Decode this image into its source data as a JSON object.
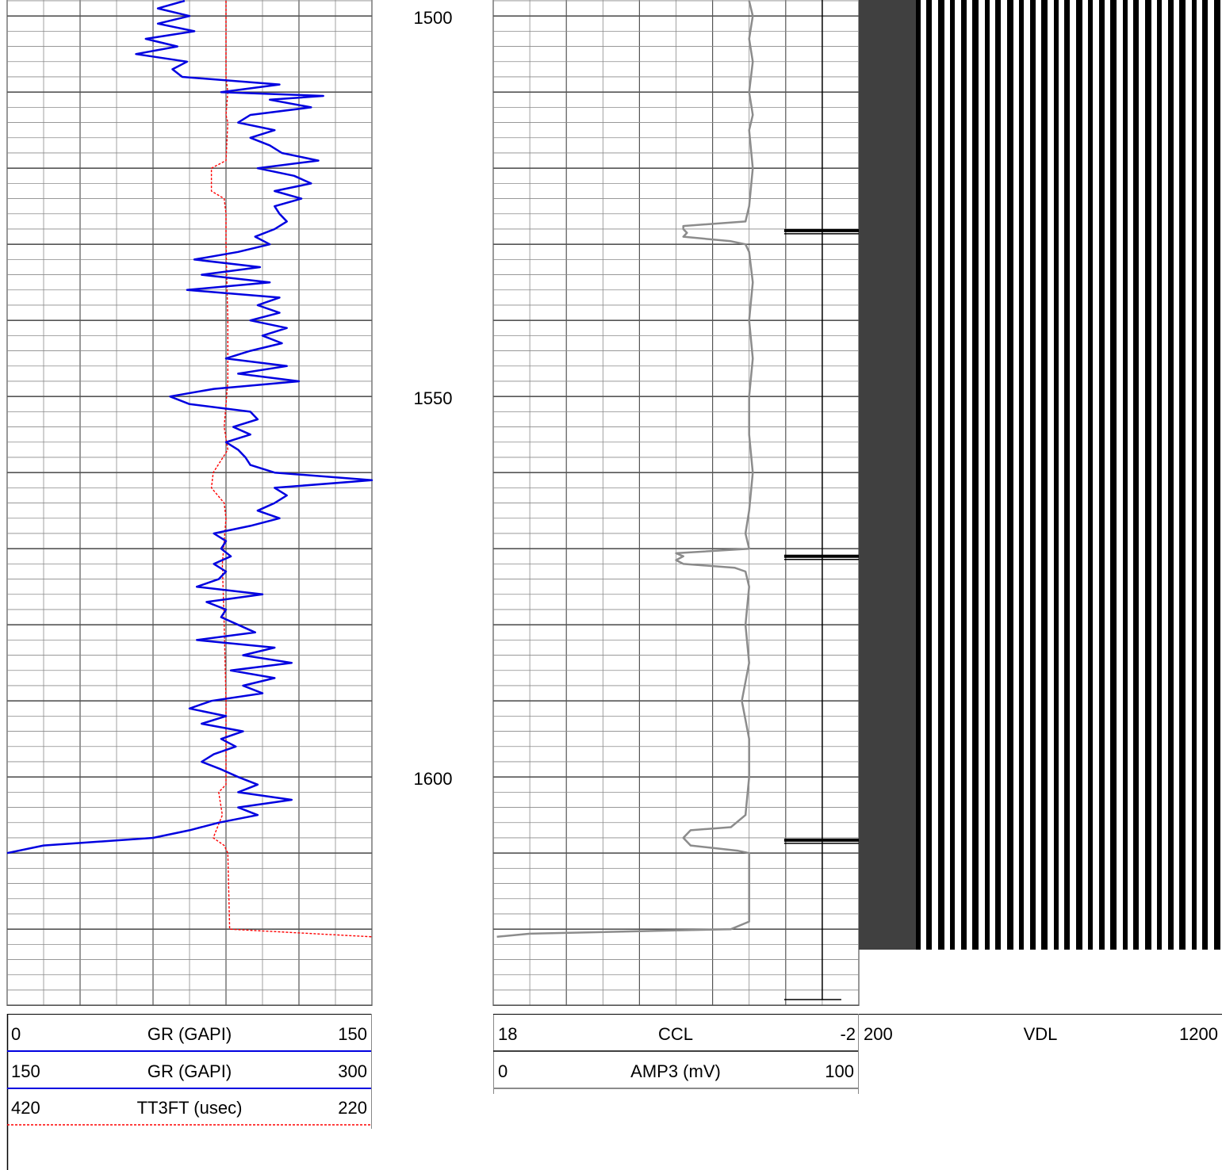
{
  "depth_track": {
    "labels": [
      "1500",
      "1550",
      "1600"
    ]
  },
  "headers": {
    "gr1": {
      "min": "0",
      "label": "GR (GAPI)",
      "max": "150"
    },
    "gr2": {
      "min": "150",
      "label": "GR (GAPI)",
      "max": "300"
    },
    "tt3": {
      "min": "420",
      "label": "TT3FT (usec)",
      "max": "220"
    },
    "ccl": {
      "min": "18",
      "label": "CCL",
      "max": "-2"
    },
    "amp3": {
      "min": "0",
      "label": "AMP3 (mV)",
      "max": "100"
    },
    "vdl": {
      "min": "200",
      "label": "VDL",
      "max": "1200"
    }
  },
  "colors": {
    "gr": "#0000e0",
    "tt3": "#ff0000",
    "amp3": "#8c8c8c",
    "ccl": "#000000",
    "grid_minor": "#8a8a8a",
    "grid_major": "#555555",
    "vdl_bg": "#404040"
  },
  "chart_data": {
    "type": "line",
    "y_axis": "depth",
    "depth_range": [
      1498,
      1630
    ],
    "series": [
      {
        "name": "GR (GAPI)",
        "scale": [
          0,
          150
        ],
        "points": [
          [
            1498,
            73
          ],
          [
            1499,
            62
          ],
          [
            1500,
            75
          ],
          [
            1501,
            62
          ],
          [
            1502,
            77
          ],
          [
            1503,
            57
          ],
          [
            1504,
            70
          ],
          [
            1505,
            53
          ],
          [
            1506,
            74
          ],
          [
            1507,
            68
          ],
          [
            1508,
            72
          ],
          [
            1509,
            112
          ],
          [
            1510,
            88
          ],
          [
            1510.5,
            130
          ],
          [
            1511,
            108
          ],
          [
            1512,
            125
          ],
          [
            1513,
            100
          ],
          [
            1514,
            95
          ],
          [
            1515,
            110
          ],
          [
            1516,
            100
          ],
          [
            1517,
            108
          ],
          [
            1518,
            113
          ],
          [
            1519,
            128
          ],
          [
            1520,
            103
          ],
          [
            1521,
            118
          ],
          [
            1522,
            125
          ],
          [
            1523,
            110
          ],
          [
            1524,
            121
          ],
          [
            1525,
            110
          ],
          [
            1526,
            112
          ],
          [
            1527,
            115
          ],
          [
            1528,
            110
          ],
          [
            1529,
            102
          ],
          [
            1530,
            108
          ],
          [
            1531,
            95
          ],
          [
            1532,
            77
          ],
          [
            1533,
            104
          ],
          [
            1534,
            80
          ],
          [
            1535,
            108
          ],
          [
            1536,
            74
          ],
          [
            1537,
            112
          ],
          [
            1538,
            103
          ],
          [
            1539,
            112
          ],
          [
            1540,
            100
          ],
          [
            1541,
            115
          ],
          [
            1542,
            105
          ],
          [
            1543,
            113
          ],
          [
            1544,
            100
          ],
          [
            1545,
            90
          ],
          [
            1546,
            115
          ],
          [
            1547,
            95
          ],
          [
            1548,
            120
          ],
          [
            1549,
            85
          ],
          [
            1550,
            67
          ],
          [
            1551,
            75
          ],
          [
            1552,
            100
          ],
          [
            1553,
            103
          ],
          [
            1554,
            93
          ],
          [
            1555,
            100
          ],
          [
            1556,
            90
          ],
          [
            1557,
            95
          ],
          [
            1558,
            98
          ],
          [
            1559,
            100
          ],
          [
            1560,
            110
          ],
          [
            1561,
            150
          ],
          [
            1562,
            110
          ],
          [
            1563,
            115
          ],
          [
            1564,
            110
          ],
          [
            1565,
            103
          ],
          [
            1566,
            112
          ],
          [
            1567,
            100
          ],
          [
            1568,
            85
          ],
          [
            1569,
            90
          ],
          [
            1570,
            88
          ],
          [
            1571,
            92
          ],
          [
            1572,
            85
          ],
          [
            1573,
            90
          ],
          [
            1574,
            87
          ],
          [
            1575,
            78
          ],
          [
            1576,
            105
          ],
          [
            1577,
            82
          ],
          [
            1578,
            90
          ],
          [
            1579,
            88
          ],
          [
            1580,
            95
          ],
          [
            1581,
            102
          ],
          [
            1582,
            78
          ],
          [
            1583,
            110
          ],
          [
            1584,
            97
          ],
          [
            1585,
            117
          ],
          [
            1586,
            92
          ],
          [
            1587,
            110
          ],
          [
            1588,
            97
          ],
          [
            1589,
            105
          ],
          [
            1590,
            84
          ],
          [
            1591,
            75
          ],
          [
            1592,
            90
          ],
          [
            1593,
            80
          ],
          [
            1594,
            97
          ],
          [
            1595,
            88
          ],
          [
            1596,
            94
          ],
          [
            1597,
            85
          ],
          [
            1598,
            80
          ],
          [
            1599,
            88
          ],
          [
            1600,
            95
          ],
          [
            1601,
            103
          ],
          [
            1602,
            95
          ],
          [
            1603,
            117
          ],
          [
            1604,
            95
          ],
          [
            1605,
            103
          ],
          [
            1606,
            87
          ],
          [
            1607,
            75
          ],
          [
            1608,
            60
          ],
          [
            1609,
            15
          ],
          [
            1610,
            0
          ]
        ]
      },
      {
        "name": "TT3FT (usec)",
        "scale": [
          420,
          220
        ],
        "points": [
          [
            1498,
            300
          ],
          [
            1508,
            300
          ],
          [
            1510,
            299
          ],
          [
            1513,
            300
          ],
          [
            1514,
            299
          ],
          [
            1519,
            300
          ],
          [
            1520,
            308
          ],
          [
            1523,
            308
          ],
          [
            1524,
            301
          ],
          [
            1526,
            300
          ],
          [
            1528,
            300
          ],
          [
            1530,
            300
          ],
          [
            1540,
            299
          ],
          [
            1548,
            299
          ],
          [
            1554,
            301
          ],
          [
            1557,
            299
          ],
          [
            1560,
            307
          ],
          [
            1562,
            308
          ],
          [
            1564,
            301
          ],
          [
            1566,
            300
          ],
          [
            1572,
            302
          ],
          [
            1580,
            301
          ],
          [
            1590,
            300
          ],
          [
            1600,
            300
          ],
          [
            1601,
            300
          ],
          [
            1602,
            304
          ],
          [
            1605,
            302
          ],
          [
            1608,
            307
          ],
          [
            1609,
            301
          ],
          [
            1610,
            299
          ],
          [
            1620,
            298
          ],
          [
            1621,
            220
          ]
        ]
      },
      {
        "name": "CCL",
        "scale": [
          18,
          -2
        ],
        "collar_depths": [
          1528.2,
          1571,
          1608.3
        ],
        "baseline": 0
      },
      {
        "name": "AMP3 (mV)",
        "scale": [
          0,
          100
        ],
        "points": [
          [
            1498,
            70
          ],
          [
            1500,
            71
          ],
          [
            1503,
            70
          ],
          [
            1506,
            71
          ],
          [
            1510,
            70
          ],
          [
            1513,
            71
          ],
          [
            1515,
            70
          ],
          [
            1520,
            71
          ],
          [
            1525,
            70
          ],
          [
            1527,
            69
          ],
          [
            1527.6,
            52
          ],
          [
            1528,
            52
          ],
          [
            1528.5,
            53
          ],
          [
            1529,
            52
          ],
          [
            1529.6,
            65
          ],
          [
            1530,
            69
          ],
          [
            1531,
            70
          ],
          [
            1535,
            71
          ],
          [
            1540,
            70
          ],
          [
            1545,
            71
          ],
          [
            1550,
            70
          ],
          [
            1555,
            70
          ],
          [
            1560,
            71
          ],
          [
            1565,
            70
          ],
          [
            1568,
            69
          ],
          [
            1570,
            70
          ],
          [
            1570.6,
            50
          ],
          [
            1571,
            52
          ],
          [
            1571.5,
            50
          ],
          [
            1572,
            52
          ],
          [
            1572.5,
            66
          ],
          [
            1573,
            69
          ],
          [
            1575,
            70
          ],
          [
            1580,
            69
          ],
          [
            1585,
            70
          ],
          [
            1590,
            68
          ],
          [
            1595,
            70
          ],
          [
            1600,
            70
          ],
          [
            1605,
            69
          ],
          [
            1606.6,
            65
          ],
          [
            1607,
            54
          ],
          [
            1608,
            52
          ],
          [
            1609,
            54
          ],
          [
            1609.7,
            67
          ],
          [
            1610,
            70
          ],
          [
            1615,
            70
          ],
          [
            1619,
            70
          ],
          [
            1620,
            65
          ],
          [
            1620.6,
            10
          ],
          [
            1621,
            1
          ]
        ]
      },
      {
        "name": "VDL",
        "scale": [
          200,
          1200
        ],
        "type": "heatmap"
      }
    ]
  }
}
